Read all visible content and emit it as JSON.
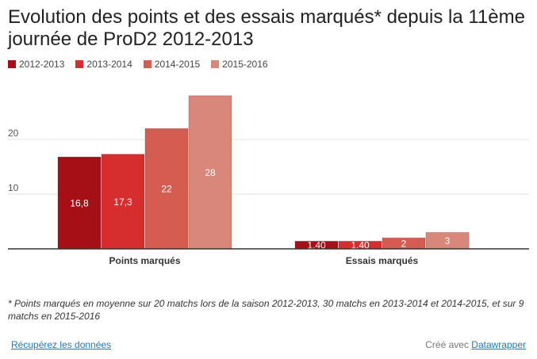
{
  "title": "Evolution des points et des essais marqués* depuis la 11ème journée de ProD2 2012-2013",
  "footnote": "* Points marqués en moyenne sur 20 matchs lors de la saison 2012-2013, 30 matchs en 2013-2014 et 2014-2015, et sur 9 matchs en 2015-2016",
  "footer": {
    "download_label": "Récupérez les données",
    "credit_prefix": "Créé avec",
    "credit_link": "Datawrapper"
  },
  "chart_data": {
    "type": "bar",
    "categories": [
      "Points marqués",
      "Essais marqués"
    ],
    "series": [
      {
        "name": "2012-2013",
        "color": "#a50f15",
        "values": [
          16.8,
          1.4
        ],
        "labels": [
          "16,8",
          "1,40"
        ]
      },
      {
        "name": "2013-2014",
        "color": "#d62e2e",
        "values": [
          17.3,
          1.4
        ],
        "labels": [
          "17,3",
          "1,40"
        ]
      },
      {
        "name": "2014-2015",
        "color": "#d45c50",
        "values": [
          22,
          2
        ],
        "labels": [
          "22",
          "2"
        ]
      },
      {
        "name": "2015-2016",
        "color": "#d9877a",
        "values": [
          28,
          3
        ],
        "labels": [
          "28",
          "3"
        ]
      }
    ],
    "yticks": [
      10,
      20
    ],
    "ylim": [
      0,
      30
    ],
    "grid": true,
    "legend_position": "top-left"
  }
}
